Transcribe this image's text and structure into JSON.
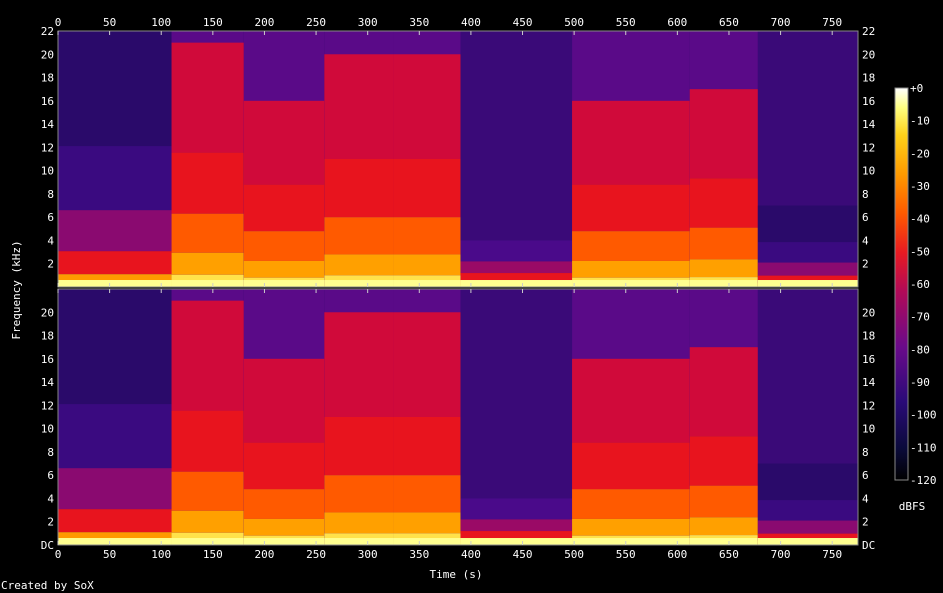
{
  "chart_data": {
    "type": "heatmap",
    "title": "",
    "xlabel": "Time (s)",
    "ylabel": "Frequency (kHz)",
    "xlim": [
      0,
      775
    ],
    "x_ticks": [
      0,
      50,
      100,
      150,
      200,
      250,
      300,
      350,
      400,
      450,
      500,
      550,
      600,
      650,
      700,
      750
    ],
    "channels": [
      {
        "ylim": [
          0,
          22
        ],
        "y_ticks": [
          "2",
          "4",
          "6",
          "8",
          "10",
          "12",
          "14",
          "16",
          "18",
          "20",
          "22"
        ]
      },
      {
        "ylim": [
          0,
          22
        ],
        "y_ticks": [
          "DC",
          "2",
          "4",
          "6",
          "8",
          "10",
          "12",
          "14",
          "16",
          "18",
          "20"
        ]
      }
    ],
    "colorbar": {
      "label": "dBFS",
      "range": [
        -120,
        0
      ],
      "ticks": [
        "+0",
        "-10",
        "-20",
        "-30",
        "-40",
        "-50",
        "-60",
        "-70",
        "-80",
        "-90",
        "-100",
        "-110",
        "-120"
      ]
    },
    "segments": [
      {
        "start": 0,
        "end": 110,
        "cutoff_khz": 22,
        "level": "quiet"
      },
      {
        "start": 110,
        "end": 180,
        "cutoff_khz": 21,
        "level": "loud"
      },
      {
        "start": 180,
        "end": 258,
        "cutoff_khz": 16,
        "level": "loud"
      },
      {
        "start": 258,
        "end": 325,
        "cutoff_khz": 20,
        "level": "loud"
      },
      {
        "start": 325,
        "end": 390,
        "cutoff_khz": 20,
        "level": "loud"
      },
      {
        "start": 390,
        "end": 498,
        "cutoff_khz": 4,
        "level": "soft"
      },
      {
        "start": 498,
        "end": 612,
        "cutoff_khz": 16,
        "level": "loud"
      },
      {
        "start": 612,
        "end": 678,
        "cutoff_khz": 17,
        "level": "loud"
      },
      {
        "start": 678,
        "end": 775,
        "cutoff_khz": 7,
        "level": "quiet"
      }
    ]
  },
  "footer": {
    "credit": "Created by SoX"
  }
}
